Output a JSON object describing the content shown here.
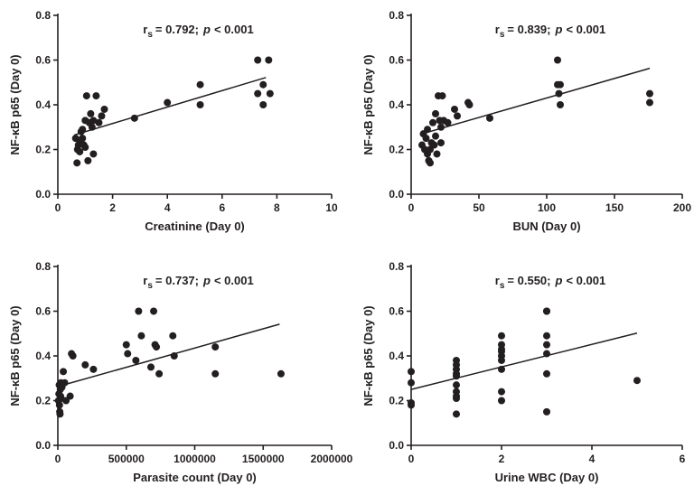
{
  "colors": {
    "ink": "#231f20",
    "background": "#ffffff"
  },
  "chart_data": [
    {
      "type": "scatter",
      "title": "",
      "xlabel": "Creatinine (Day 0)",
      "ylabel": "NF-κB p65 (Day 0)",
      "annotation": {
        "r_label": "r",
        "r_sub": "s",
        "r_value": "= 0.792;",
        "p_label": "p",
        "p_value": "< 0.001"
      },
      "xlim": [
        0,
        10
      ],
      "ylim": [
        0,
        0.8
      ],
      "x_ticks": [
        0,
        2,
        4,
        6,
        8,
        10
      ],
      "x_tick_labels": [
        "0",
        "2",
        "4",
        "6",
        "8",
        "10"
      ],
      "y_ticks": [
        0,
        0.2,
        0.4,
        0.6,
        0.8
      ],
      "y_tick_labels": [
        "0.0",
        "0.2",
        "0.4",
        "0.6",
        "0.8"
      ],
      "grid": false,
      "points": [
        [
          0.65,
          0.25
        ],
        [
          0.7,
          0.14
        ],
        [
          0.72,
          0.2
        ],
        [
          0.75,
          0.22
        ],
        [
          0.8,
          0.24
        ],
        [
          0.8,
          0.19
        ],
        [
          0.85,
          0.28
        ],
        [
          0.9,
          0.29
        ],
        [
          0.9,
          0.25
        ],
        [
          0.95,
          0.22
        ],
        [
          1.0,
          0.33
        ],
        [
          1.0,
          0.21
        ],
        [
          1.05,
          0.44
        ],
        [
          1.1,
          0.15
        ],
        [
          1.15,
          0.32
        ],
        [
          1.2,
          0.36
        ],
        [
          1.25,
          0.3
        ],
        [
          1.3,
          0.18
        ],
        [
          1.3,
          0.33
        ],
        [
          1.4,
          0.44
        ],
        [
          1.5,
          0.32
        ],
        [
          1.6,
          0.35
        ],
        [
          1.7,
          0.38
        ],
        [
          2.8,
          0.34
        ],
        [
          4.0,
          0.41
        ],
        [
          5.2,
          0.49
        ],
        [
          5.2,
          0.4
        ],
        [
          7.3,
          0.6
        ],
        [
          7.3,
          0.45
        ],
        [
          7.5,
          0.49
        ],
        [
          7.5,
          0.4
        ],
        [
          7.7,
          0.6
        ],
        [
          7.75,
          0.45
        ]
      ],
      "regression": {
        "x": [
          0.6,
          7.6
        ],
        "y": [
          0.265,
          0.522
        ]
      }
    },
    {
      "type": "scatter",
      "title": "",
      "xlabel": "BUN (Day 0)",
      "ylabel": "NF-κB p65 (Day 0)",
      "annotation": {
        "r_label": "r",
        "r_sub": "s",
        "r_value": "= 0.839;",
        "p_label": "p",
        "p_value": "< 0.001"
      },
      "xlim": [
        0,
        200
      ],
      "ylim": [
        0,
        0.8
      ],
      "x_ticks": [
        0,
        50,
        100,
        150,
        200
      ],
      "x_tick_labels": [
        "0",
        "50",
        "100",
        "150",
        "200"
      ],
      "y_ticks": [
        0,
        0.2,
        0.4,
        0.6,
        0.8
      ],
      "y_tick_labels": [
        "0.0",
        "0.2",
        "0.4",
        "0.6",
        "0.8"
      ],
      "grid": false,
      "points": [
        [
          8,
          0.22
        ],
        [
          9,
          0.27
        ],
        [
          10,
          0.2
        ],
        [
          11,
          0.25
        ],
        [
          12,
          0.18
        ],
        [
          12,
          0.29
        ],
        [
          13,
          0.15
        ],
        [
          14,
          0.14
        ],
        [
          14,
          0.2
        ],
        [
          15,
          0.23
        ],
        [
          16,
          0.32
        ],
        [
          17,
          0.22
        ],
        [
          18,
          0.26
        ],
        [
          18,
          0.36
        ],
        [
          19,
          0.18
        ],
        [
          20,
          0.44
        ],
        [
          21,
          0.33
        ],
        [
          22,
          0.23
        ],
        [
          22,
          0.3
        ],
        [
          23,
          0.44
        ],
        [
          24,
          0.33
        ],
        [
          27,
          0.32
        ],
        [
          32,
          0.38
        ],
        [
          34,
          0.35
        ],
        [
          42,
          0.41
        ],
        [
          43,
          0.4
        ],
        [
          58,
          0.34
        ],
        [
          108,
          0.6
        ],
        [
          108,
          0.49
        ],
        [
          109,
          0.45
        ],
        [
          110,
          0.4
        ],
        [
          110,
          0.49
        ],
        [
          176,
          0.45
        ],
        [
          176,
          0.41
        ]
      ],
      "regression": {
        "x": [
          8,
          176
        ],
        "y": [
          0.27,
          0.563
        ]
      }
    },
    {
      "type": "scatter",
      "title": "",
      "xlabel": "Parasite count (Day 0)",
      "ylabel": "NF-κB p65 (Day 0)",
      "annotation": {
        "r_label": "r",
        "r_sub": "s",
        "r_value": "= 0.737;",
        "p_label": "p",
        "p_value": "< 0.001"
      },
      "xlim": [
        0,
        2000000
      ],
      "ylim": [
        0,
        0.8
      ],
      "x_ticks": [
        0,
        500000,
        1000000,
        1500000,
        2000000
      ],
      "x_tick_labels": [
        "0",
        "500000",
        "1000000",
        "1500000",
        "2000000"
      ],
      "y_ticks": [
        0,
        0.2,
        0.4,
        0.6,
        0.8
      ],
      "y_tick_labels": [
        "0.0",
        "0.2",
        "0.4",
        "0.6",
        "0.8"
      ],
      "grid": false,
      "points": [
        [
          5000,
          0.2
        ],
        [
          8000,
          0.23
        ],
        [
          10000,
          0.27
        ],
        [
          12000,
          0.18
        ],
        [
          14000,
          0.15
        ],
        [
          16000,
          0.14
        ],
        [
          18000,
          0.25
        ],
        [
          20000,
          0.22
        ],
        [
          22000,
          0.28
        ],
        [
          24000,
          0.21
        ],
        [
          30000,
          0.26
        ],
        [
          40000,
          0.33
        ],
        [
          50000,
          0.28
        ],
        [
          60000,
          0.2
        ],
        [
          90000,
          0.22
        ],
        [
          100000,
          0.41
        ],
        [
          110000,
          0.4
        ],
        [
          200000,
          0.36
        ],
        [
          260000,
          0.34
        ],
        [
          500000,
          0.45
        ],
        [
          510000,
          0.41
        ],
        [
          570000,
          0.38
        ],
        [
          590000,
          0.6
        ],
        [
          610000,
          0.49
        ],
        [
          680000,
          0.35
        ],
        [
          700000,
          0.6
        ],
        [
          710000,
          0.45
        ],
        [
          720000,
          0.44
        ],
        [
          740000,
          0.32
        ],
        [
          840000,
          0.49
        ],
        [
          850000,
          0.4
        ],
        [
          1150000,
          0.44
        ],
        [
          1150000,
          0.32
        ],
        [
          1630000,
          0.32
        ]
      ],
      "regression": {
        "x": [
          0,
          1620000
        ],
        "y": [
          0.263,
          0.542
        ]
      }
    },
    {
      "type": "scatter",
      "title": "",
      "xlabel": "Urine WBC (Day 0)",
      "ylabel": "NF-κB p65 (Day 0)",
      "annotation": {
        "r_label": "r",
        "r_sub": "s",
        "r_value": "= 0.550;",
        "p_label": "p",
        "p_value": "< 0.001"
      },
      "xlim": [
        0,
        6
      ],
      "ylim": [
        0,
        0.8
      ],
      "x_ticks": [
        0,
        2,
        4,
        6
      ],
      "x_tick_labels": [
        "0",
        "2",
        "4",
        "6"
      ],
      "y_ticks": [
        0,
        0.2,
        0.4,
        0.6,
        0.8
      ],
      "y_tick_labels": [
        "0.0",
        "0.2",
        "0.4",
        "0.6",
        "0.8"
      ],
      "grid": false,
      "points": [
        [
          0,
          0.33
        ],
        [
          0,
          0.28
        ],
        [
          0,
          0.19
        ],
        [
          0,
          0.18
        ],
        [
          1,
          0.38
        ],
        [
          1,
          0.36
        ],
        [
          1,
          0.34
        ],
        [
          1,
          0.32
        ],
        [
          1,
          0.31
        ],
        [
          1,
          0.27
        ],
        [
          1,
          0.24
        ],
        [
          1,
          0.22
        ],
        [
          1,
          0.21
        ],
        [
          1,
          0.14
        ],
        [
          2,
          0.49
        ],
        [
          2,
          0.45
        ],
        [
          2,
          0.43
        ],
        [
          2,
          0.42
        ],
        [
          2,
          0.4
        ],
        [
          2,
          0.38
        ],
        [
          2,
          0.34
        ],
        [
          2,
          0.24
        ],
        [
          2,
          0.2
        ],
        [
          3,
          0.6
        ],
        [
          3,
          0.6
        ],
        [
          3,
          0.49
        ],
        [
          3,
          0.45
        ],
        [
          3,
          0.41
        ],
        [
          3,
          0.32
        ],
        [
          3,
          0.15
        ],
        [
          5,
          0.29
        ]
      ],
      "regression": {
        "x": [
          0,
          5
        ],
        "y": [
          0.25,
          0.502
        ]
      }
    }
  ]
}
